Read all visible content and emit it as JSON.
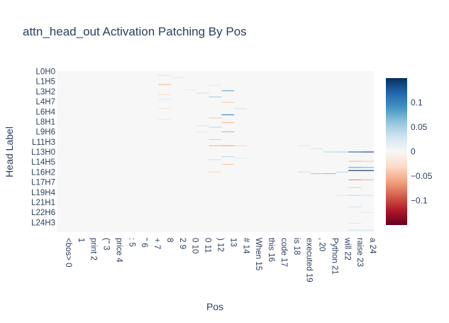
{
  "chart_data": {
    "type": "heatmap",
    "title": "attn_head_out Activation Patching By Pos",
    "xlabel": "Pos",
    "ylabel": "Head Label",
    "x_categories": [
      "<bos> 0",
      "1",
      "print 2",
      "(\" 3",
      "price 4",
      ": 5",
      "\" 6",
      "+ 7",
      "8",
      "2 9",
      "0 10",
      "0 11",
      ") 12",
      "13",
      "# 14",
      "When 15",
      "this 16",
      "code 17",
      "is 18",
      "executed 19",
      ", 20",
      "Python 21",
      "will 22",
      "raise 23",
      "a 24"
    ],
    "y_tick_labels": [
      "L0H0",
      "L1H5",
      "L3H2",
      "L4H7",
      "L6H4",
      "L8H1",
      "L9H6",
      "L11H3",
      "L13H0",
      "L14H5",
      "L16H2",
      "L17H7",
      "L19H4",
      "L21H1",
      "L22H6",
      "L24H3"
    ],
    "colorscale": "RdBu",
    "zrange": [
      -0.15,
      0.15
    ],
    "colorbar_ticks": [
      0.1,
      0.05,
      0,
      -0.05,
      -0.1
    ],
    "colorbar_tick_labels": [
      "0.1",
      "0.05",
      "0",
      "−0.05",
      "−0.1"
    ],
    "colors": {
      "background": "#ffffff",
      "neutral_cell": "#f7f7f7",
      "text": "#2a3f5f"
    },
    "num_rows": 208,
    "highlights": [
      {
        "pos": 8,
        "row": 5,
        "value": 0.03
      },
      {
        "pos": 8,
        "row": 17,
        "value": -0.05
      },
      {
        "pos": 8,
        "row": 30,
        "value": -0.03
      },
      {
        "pos": 8,
        "row": 36,
        "value": 0.02
      },
      {
        "pos": 8,
        "row": 48,
        "value": -0.02
      },
      {
        "pos": 8,
        "row": 62,
        "value": 0.02
      },
      {
        "pos": 9,
        "row": 8,
        "value": -0.02
      },
      {
        "pos": 10,
        "row": 24,
        "value": 0.02
      },
      {
        "pos": 11,
        "row": 28,
        "value": 0.03
      },
      {
        "pos": 11,
        "row": 70,
        "value": -0.03
      },
      {
        "pos": 11,
        "row": 78,
        "value": -0.02
      },
      {
        "pos": 12,
        "row": 18,
        "value": -0.02
      },
      {
        "pos": 12,
        "row": 33,
        "value": 0.05
      },
      {
        "pos": 12,
        "row": 60,
        "value": -0.04
      },
      {
        "pos": 12,
        "row": 72,
        "value": 0.04
      },
      {
        "pos": 12,
        "row": 88,
        "value": -0.04
      },
      {
        "pos": 12,
        "row": 96,
        "value": -0.05
      },
      {
        "pos": 12,
        "row": 114,
        "value": 0.03
      },
      {
        "pos": 12,
        "row": 130,
        "value": -0.03
      },
      {
        "pos": 13,
        "row": 25,
        "value": 0.08
      },
      {
        "pos": 13,
        "row": 40,
        "value": -0.04
      },
      {
        "pos": 13,
        "row": 56,
        "value": 0.1
      },
      {
        "pos": 13,
        "row": 66,
        "value": -0.05
      },
      {
        "pos": 13,
        "row": 78,
        "value": 0.06
      },
      {
        "pos": 13,
        "row": 96,
        "value": -0.06
      },
      {
        "pos": 13,
        "row": 110,
        "value": 0.04
      },
      {
        "pos": 13,
        "row": 120,
        "value": -0.04
      },
      {
        "pos": 14,
        "row": 48,
        "value": 0.03
      },
      {
        "pos": 14,
        "row": 96,
        "value": -0.03
      },
      {
        "pos": 14,
        "row": 112,
        "value": 0.02
      },
      {
        "pos": 19,
        "row": 96,
        "value": 0.02
      },
      {
        "pos": 19,
        "row": 130,
        "value": 0.03
      },
      {
        "pos": 20,
        "row": 100,
        "value": 0.03
      },
      {
        "pos": 20,
        "row": 132,
        "value": 0.05
      },
      {
        "pos": 21,
        "row": 104,
        "value": 0.04
      },
      {
        "pos": 21,
        "row": 132,
        "value": 0.06
      },
      {
        "pos": 22,
        "row": 104,
        "value": 0.05
      },
      {
        "pos": 22,
        "row": 130,
        "value": 0.04
      },
      {
        "pos": 22,
        "row": 160,
        "value": 0.02
      },
      {
        "pos": 23,
        "row": 104,
        "value": 0.12
      },
      {
        "pos": 23,
        "row": 116,
        "value": -0.05
      },
      {
        "pos": 23,
        "row": 124,
        "value": 0.08
      },
      {
        "pos": 23,
        "row": 128,
        "value": 0.15
      },
      {
        "pos": 23,
        "row": 140,
        "value": -0.07
      },
      {
        "pos": 23,
        "row": 150,
        "value": -0.04
      },
      {
        "pos": 23,
        "row": 160,
        "value": 0.04
      },
      {
        "pos": 23,
        "row": 175,
        "value": 0.03
      },
      {
        "pos": 23,
        "row": 196,
        "value": 0.02
      },
      {
        "pos": 23,
        "row": 205,
        "value": 0.03
      },
      {
        "pos": 24,
        "row": 104,
        "value": 0.14
      },
      {
        "pos": 24,
        "row": 116,
        "value": -0.04
      },
      {
        "pos": 24,
        "row": 124,
        "value": 0.07
      },
      {
        "pos": 24,
        "row": 128,
        "value": 0.15
      },
      {
        "pos": 24,
        "row": 140,
        "value": -0.05
      },
      {
        "pos": 24,
        "row": 160,
        "value": 0.03
      },
      {
        "pos": 24,
        "row": 182,
        "value": 0.02
      },
      {
        "pos": 24,
        "row": 205,
        "value": 0.03
      }
    ]
  }
}
